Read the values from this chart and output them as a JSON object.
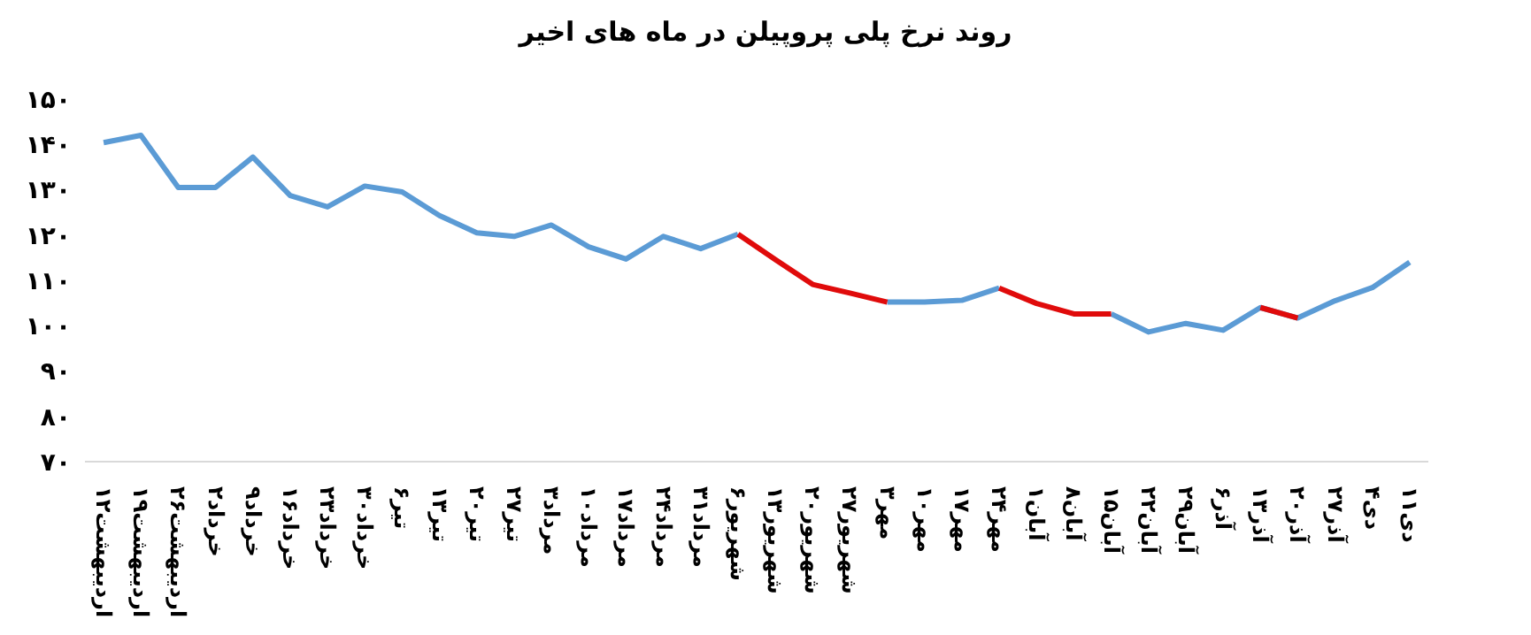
{
  "chart_data": {
    "type": "line",
    "title": "روند نرخ پلی پروپیلن در ماه های اخیر",
    "categories": [
      "۱۲اردیبهشت",
      "۱۹اردیبهشت",
      "۲۶اردیبهشت",
      "۲خرداد",
      "۹خرداد",
      "۱۶خرداد",
      "۲۳خرداد",
      "۳۰خرداد",
      "۶تیر",
      "۱۳تیر",
      "۲۰تیر",
      "۲۷تیر",
      "۳مرداد",
      "۱۰مرداد",
      "۱۷مرداد",
      "۲۴مرداد",
      "۳۱مرداد",
      "۶شهریور",
      "۱۳شهریور",
      "۲۰شهریور",
      "۲۷شهریور",
      "۳مهر",
      "۱۰مهر",
      "۱۷مهر",
      "۲۴مهر",
      "۱آبان",
      "۸آبان",
      "۱۵آبان",
      "۲۲آبان",
      "۲۹آبان",
      "۶آذر",
      "۱۳آذر",
      "۲۰آذر",
      "۲۷آذر",
      "۴دی",
      "۱۱دی"
    ],
    "series": [
      {
        "color": "#5b9bd5",
        "values": [
          140.4,
          142,
          130.5,
          130.5,
          137.2,
          128.7,
          126.2,
          130.8,
          129.5,
          124.3,
          120.5,
          119.7,
          122.2,
          117.4,
          114.7,
          119.7,
          117,
          120.2,
          null,
          null,
          null,
          105.2,
          105.2,
          105.6,
          108.3,
          null,
          null,
          102.6,
          98.6,
          100.5,
          99,
          104,
          101.7,
          105.5,
          108.4,
          114
        ]
      },
      {
        "color": "#e00b0b",
        "values": [
          null,
          null,
          null,
          null,
          null,
          null,
          null,
          null,
          null,
          null,
          null,
          null,
          null,
          null,
          null,
          null,
          null,
          120.2,
          114.6,
          109.1,
          107.2,
          105.2,
          null,
          null,
          108.3,
          104.9,
          102.6,
          102.6,
          null,
          null,
          null,
          104,
          101.7,
          null,
          null,
          null
        ]
      }
    ],
    "ylim": [
      70,
      150
    ],
    "yticks": [
      {
        "value": 70,
        "label": "۷۰"
      },
      {
        "value": 80,
        "label": "۸۰"
      },
      {
        "value": 90,
        "label": "۹۰"
      },
      {
        "value": 100,
        "label": "۱۰۰"
      },
      {
        "value": 110,
        "label": "۱۱۰"
      },
      {
        "value": 120,
        "label": "۱۲۰"
      },
      {
        "value": 130,
        "label": "۱۳۰"
      },
      {
        "value": 140,
        "label": "۱۴۰"
      },
      {
        "value": 150,
        "label": "۱۵۰"
      }
    ]
  }
}
